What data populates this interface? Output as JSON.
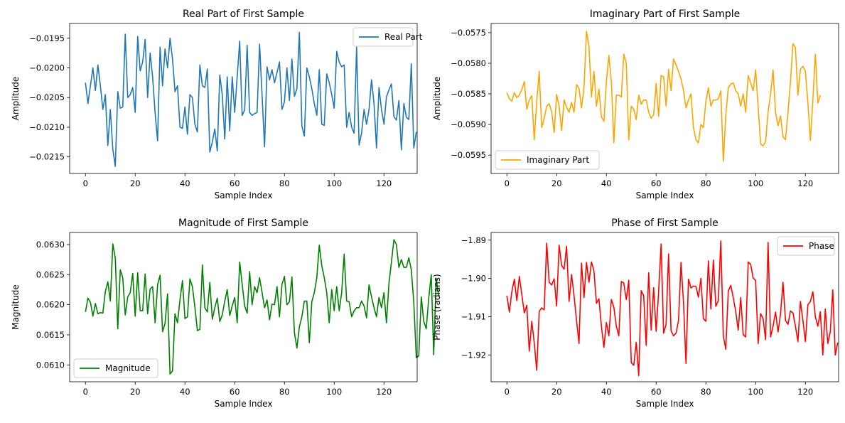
{
  "chart_data": [
    {
      "type": "line",
      "title": "Real Part of First Sample",
      "xlabel": "Sample Index",
      "ylabel": "Amplitude",
      "xlim": [
        -6.35,
        133.35
      ],
      "ylim": [
        -0.02178,
        -0.01925
      ],
      "xticks": [
        0,
        20,
        40,
        60,
        80,
        100,
        120
      ],
      "xtick_labels": [
        "0",
        "20",
        "40",
        "60",
        "80",
        "100",
        "120"
      ],
      "yticks": [
        -0.0215,
        -0.021,
        -0.0205,
        -0.02,
        -0.0195
      ],
      "ytick_labels": [
        "−0.0215",
        "−0.0210",
        "−0.0205",
        "−0.0200",
        "−0.0195"
      ],
      "legend_position": "upper right",
      "series": [
        {
          "name": "Real Part",
          "color": "#1f77b4",
          "y": [
            -0.02025,
            -0.0206,
            -0.0203,
            -0.02,
            -0.02038,
            -0.01995,
            -0.0203,
            -0.0207,
            -0.02045,
            -0.02131,
            -0.0207,
            -0.02137,
            -0.02166,
            -0.0204,
            -0.02068,
            -0.02066,
            -0.01943,
            -0.0205,
            -0.02045,
            -0.02033,
            -0.02075,
            -0.01947,
            -0.02005,
            -0.0199,
            -0.01952,
            -0.0205,
            -0.01975,
            -0.02015,
            -0.02076,
            -0.02123,
            -0.01965,
            -0.0203,
            -0.01968,
            -0.02,
            -0.0195,
            -0.01985,
            -0.0204,
            -0.0203,
            -0.021,
            -0.02102,
            -0.02066,
            -0.02112,
            -0.02045,
            -0.0205,
            -0.02095,
            -0.02108,
            -0.01995,
            -0.0203,
            -0.02033,
            -0.02002,
            -0.02142,
            -0.02125,
            -0.02103,
            -0.0214,
            -0.02012,
            -0.02045,
            -0.0212,
            -0.02015,
            -0.02106,
            -0.02015,
            -0.02075,
            -0.02015,
            -0.01955,
            -0.0208,
            -0.02071,
            -0.01962,
            -0.02075,
            -0.0208,
            -0.02077,
            -0.02075,
            -0.0196,
            -0.02046,
            -0.02133,
            -0.01998,
            -0.0202,
            -0.02003,
            -0.02025,
            -0.02008,
            -0.0199,
            -0.0207,
            -0.02057,
            -0.02,
            -0.02055,
            -0.01985,
            -0.02048,
            -0.02035,
            -0.0194,
            -0.02098,
            -0.02115,
            -0.02,
            -0.02015,
            -0.02035,
            -0.0206,
            -0.0208,
            -0.02003,
            -0.02095,
            -0.02097,
            -0.0201,
            -0.02025,
            -0.02045,
            -0.02068,
            -0.01972,
            -0.0199,
            -0.01998,
            -0.01995,
            -0.021,
            -0.02075,
            -0.021,
            -0.0211,
            -0.01965,
            -0.0213,
            -0.0211,
            -0.0207,
            -0.02095,
            -0.0207,
            -0.0202,
            -0.0206,
            -0.02135,
            -0.02033,
            -0.0207,
            -0.02095,
            -0.02049,
            -0.02037,
            -0.02027,
            -0.02082,
            -0.02088,
            -0.02055,
            -0.02138,
            -0.0206,
            -0.02083,
            -0.02087,
            -0.01993,
            -0.02135,
            -0.02108
          ]
        }
      ]
    },
    {
      "type": "line",
      "title": "Imaginary Part of First Sample",
      "xlabel": "Sample Index",
      "ylabel": "Amplitude",
      "xlim": [
        -6.35,
        133.35
      ],
      "ylim": [
        -0.0598,
        -0.05735
      ],
      "xticks": [
        0,
        20,
        40,
        60,
        80,
        100,
        120
      ],
      "xtick_labels": [
        "0",
        "20",
        "40",
        "60",
        "80",
        "100",
        "120"
      ],
      "yticks": [
        -0.0595,
        -0.059,
        -0.0585,
        -0.058,
        -0.0575
      ],
      "ytick_labels": [
        "−0.0595",
        "−0.0590",
        "−0.0585",
        "−0.0580",
        "−0.0575"
      ],
      "legend_position": "lower left",
      "series": [
        {
          "name": "Imaginary Part",
          "color": "#ffa500",
          "y": [
            -0.05848,
            -0.05858,
            -0.05862,
            -0.05848,
            -0.05856,
            -0.05852,
            -0.05843,
            -0.0583,
            -0.05875,
            -0.0586,
            -0.05853,
            -0.05925,
            -0.05862,
            -0.05813,
            -0.05905,
            -0.0589,
            -0.0587,
            -0.05866,
            -0.05879,
            -0.05913,
            -0.05851,
            -0.0587,
            -0.0591,
            -0.0586,
            -0.05872,
            -0.0588,
            -0.05864,
            -0.0588,
            -0.05835,
            -0.05841,
            -0.05873,
            -0.0584,
            -0.05748,
            -0.05772,
            -0.05855,
            -0.05813,
            -0.0587,
            -0.05842,
            -0.05887,
            -0.05895,
            -0.0583,
            -0.05787,
            -0.0583,
            -0.0593,
            -0.05852,
            -0.05852,
            -0.05855,
            -0.05785,
            -0.058,
            -0.05925,
            -0.0587,
            -0.05875,
            -0.05892,
            -0.05852,
            -0.05867,
            -0.0586,
            -0.0586,
            -0.0588,
            -0.0589,
            -0.05884,
            -0.05833,
            -0.05887,
            -0.0582,
            -0.05822,
            -0.0587,
            -0.0581,
            -0.05845,
            -0.05793,
            -0.05803,
            -0.05813,
            -0.05826,
            -0.05844,
            -0.05873,
            -0.0586,
            -0.0585,
            -0.05905,
            -0.05925,
            -0.0593,
            -0.059,
            -0.05905,
            -0.05862,
            -0.0584,
            -0.0587,
            -0.0586,
            -0.0586,
            -0.05858,
            -0.05845,
            -0.0596,
            -0.05885,
            -0.0584,
            -0.05834,
            -0.05832,
            -0.05845,
            -0.0585,
            -0.0587,
            -0.0585,
            -0.0588,
            -0.0582,
            -0.05832,
            -0.05845,
            -0.05811,
            -0.0587,
            -0.05932,
            -0.05935,
            -0.05928,
            -0.0588,
            -0.0585,
            -0.05811,
            -0.0588,
            -0.05902,
            -0.05886,
            -0.0592,
            -0.05925,
            -0.0588,
            -0.0583,
            -0.05768,
            -0.05775,
            -0.05852,
            -0.0581,
            -0.05805,
            -0.05813,
            -0.05865,
            -0.05926,
            -0.0586,
            -0.05785,
            -0.05865,
            -0.05852
          ]
        }
      ]
    },
    {
      "type": "line",
      "title": "Magnitude of First Sample",
      "xlabel": "Sample Index",
      "ylabel": "Magnitude",
      "xlim": [
        -6.35,
        133.35
      ],
      "ylim": [
        0.06072,
        0.0632
      ],
      "xticks": [
        0,
        20,
        40,
        60,
        80,
        100,
        120
      ],
      "xtick_labels": [
        "0",
        "20",
        "40",
        "60",
        "80",
        "100",
        "120"
      ],
      "yticks": [
        0.061,
        0.0615,
        0.062,
        0.0625,
        0.063
      ],
      "ytick_labels": [
        "0.0610",
        "0.0615",
        "0.0620",
        "0.0625",
        "0.0630"
      ],
      "legend_position": "lower left",
      "series": [
        {
          "name": "Magnitude",
          "color": "#008000",
          "y": [
            0.06188,
            0.06211,
            0.06204,
            0.06181,
            0.06202,
            0.06185,
            0.06187,
            0.06186,
            0.06222,
            0.06238,
            0.06206,
            0.06301,
            0.06278,
            0.0616,
            0.06258,
            0.06245,
            0.06183,
            0.06213,
            0.0622,
            0.06252,
            0.06181,
            0.06253,
            0.0619,
            0.0619,
            0.06251,
            0.06185,
            0.06226,
            0.0623,
            0.0617,
            0.06233,
            0.06249,
            0.06155,
            0.06169,
            0.06218,
            0.06085,
            0.0609,
            0.06185,
            0.0617,
            0.06208,
            0.0624,
            0.06177,
            0.0618,
            0.06243,
            0.0623,
            0.06196,
            0.06157,
            0.06159,
            0.06266,
            0.06195,
            0.06188,
            0.06237,
            0.06176,
            0.06195,
            0.06211,
            0.06172,
            0.06183,
            0.06206,
            0.06225,
            0.06182,
            0.06198,
            0.06212,
            0.0617,
            0.06271,
            0.06234,
            0.06198,
            0.06186,
            0.06255,
            0.062,
            0.0623,
            0.0622,
            0.06245,
            0.0622,
            0.06195,
            0.06208,
            0.06175,
            0.06201,
            0.062,
            0.0623,
            0.0618,
            0.06234,
            0.06247,
            0.062,
            0.06205,
            0.06246,
            0.06154,
            0.06128,
            0.06163,
            0.0618,
            0.06206,
            0.06206,
            0.06137,
            0.06205,
            0.0622,
            0.06245,
            0.06299,
            0.06265,
            0.06245,
            0.0622,
            0.0617,
            0.06225,
            0.0619,
            0.0623,
            0.0619,
            0.0622,
            0.06284,
            0.06206,
            0.06205,
            0.0618,
            0.0619,
            0.06195,
            0.06195,
            0.06206,
            0.06198,
            0.06178,
            0.06233,
            0.06213,
            0.06195,
            0.0618,
            0.06212,
            0.06195,
            0.0622,
            0.0617,
            0.06235,
            0.06271,
            0.06308,
            0.063,
            0.06262,
            0.06275,
            0.06262,
            0.06262,
            0.06278,
            0.06258,
            0.06203,
            0.06112,
            0.06115,
            0.06213,
            0.06172,
            0.0616,
            0.06211,
            0.0625,
            0.06117,
            0.06244,
            0.06214
          ]
        }
      ]
    },
    {
      "type": "line",
      "title": "Phase of First Sample",
      "xlabel": "Sample Index",
      "ylabel": "Phase (radians)",
      "xlim": [
        -6.35,
        133.35
      ],
      "ylim": [
        -1.927,
        -1.888
      ],
      "xticks": [
        0,
        20,
        40,
        60,
        80,
        100,
        120
      ],
      "xtick_labels": [
        "0",
        "20",
        "40",
        "60",
        "80",
        "100",
        "120"
      ],
      "yticks": [
        -1.92,
        -1.91,
        -1.9,
        -1.89
      ],
      "ytick_labels": [
        "−1.92",
        "−1.91",
        "−1.90",
        "−1.89"
      ],
      "legend_position": "upper right",
      "series": [
        {
          "name": "Phase",
          "color": "#ff0000",
          "y": [
            -1.9045,
            -1.9088,
            -1.9034,
            -1.9002,
            -1.9058,
            -1.8995,
            -1.9042,
            -1.909,
            -1.907,
            -1.919,
            -1.9112,
            -1.9168,
            -1.924,
            -1.9086,
            -1.9077,
            -1.9082,
            -1.8908,
            -1.901,
            -1.9017,
            -1.9001,
            -1.9072,
            -1.8913,
            -1.8966,
            -1.8976,
            -1.8916,
            -1.906,
            -1.899,
            -1.9045,
            -1.911,
            -1.917,
            -1.896,
            -1.905,
            -1.8958,
            -1.901,
            -1.8957,
            -1.898,
            -1.9065,
            -1.9053,
            -1.9125,
            -1.918,
            -1.9115,
            -1.915,
            -1.9055,
            -1.9075,
            -1.9125,
            -1.915,
            -1.9008,
            -1.9012,
            -1.9055,
            -1.9005,
            -1.922,
            -1.9227,
            -1.9167,
            -1.9254,
            -1.9032,
            -1.9045,
            -1.9175,
            -1.8985,
            -1.9135,
            -1.9024,
            -1.9138,
            -1.9035,
            -1.891,
            -1.9143,
            -1.912,
            -1.8936,
            -1.9137,
            -1.915,
            -1.9143,
            -1.911,
            -1.8958,
            -1.9062,
            -1.9222,
            -1.9002,
            -1.9025,
            -1.902,
            -1.9021,
            -1.9049,
            -1.9,
            -1.9105,
            -1.9112,
            -1.8954,
            -1.908,
            -1.8952,
            -1.9073,
            -1.9058,
            -1.8902,
            -1.915,
            -1.9185,
            -1.9033,
            -1.9018,
            -1.905,
            -1.9087,
            -1.9135,
            -1.905,
            -1.9147,
            -1.9153,
            -1.8957,
            -1.8963,
            -1.8999,
            -1.9005,
            -1.917,
            -1.9092,
            -1.9105,
            -1.916,
            -1.8906,
            -1.9153,
            -1.9125,
            -1.9088,
            -1.914,
            -1.9093,
            -1.901,
            -1.911,
            -1.912,
            -1.9085,
            -1.909,
            -1.9125,
            -1.9165,
            -1.906,
            -1.911,
            -1.9165,
            -1.9069,
            -1.906,
            -1.9035,
            -1.91,
            -1.9125,
            -1.9087,
            -1.92,
            -1.908,
            -1.917,
            -1.914,
            -1.903,
            -1.92,
            -1.9168
          ]
        }
      ]
    }
  ]
}
